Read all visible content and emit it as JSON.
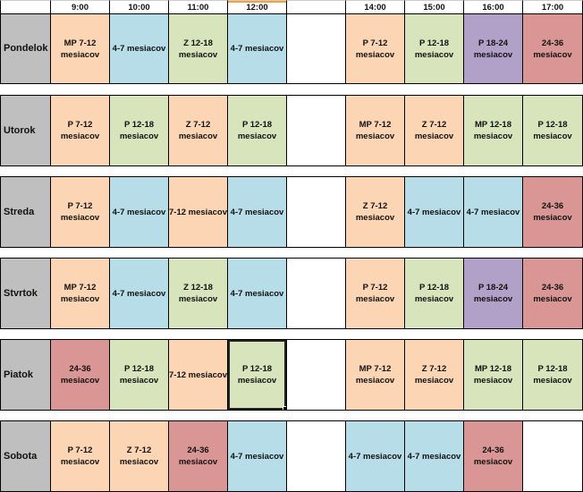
{
  "colors": {
    "peach": "#FCD5B4",
    "blue": "#B7DEE8",
    "green": "#D8E4BC",
    "purple": "#B1A0C7",
    "red": "#DA9694",
    "gray": "#BFBFBF",
    "empty": "#FFFFFF"
  },
  "headers": [
    "",
    "9:00",
    "10:00",
    "11:00",
    "12:00",
    "",
    "14:00",
    "15:00",
    "16:00",
    "17:00"
  ],
  "selected": {
    "day": "Piatok",
    "time": "12:00"
  },
  "rows": [
    {
      "day": "Pondelok",
      "cells": [
        {
          "text": "MP 7-12\nmesiacov",
          "color": "peach"
        },
        {
          "text": "4-7 mesiacov",
          "color": "blue"
        },
        {
          "text": "Z 12-18\nmesiacov",
          "color": "green"
        },
        {
          "text": "4-7 mesiacov",
          "color": "blue"
        },
        {
          "text": "",
          "color": "empty"
        },
        {
          "text": "P 7-12\nmesiacov",
          "color": "peach"
        },
        {
          "text": "P 12-18\nmesiacov",
          "color": "green"
        },
        {
          "text": "P 18-24\nmesiacov",
          "color": "purple"
        },
        {
          "text": "24-36\nmesiacov",
          "color": "red"
        }
      ]
    },
    {
      "day": "Utorok",
      "cells": [
        {
          "text": "P 7-12\nmesiacov",
          "color": "peach"
        },
        {
          "text": "P 12-18\nmesiacov",
          "color": "green"
        },
        {
          "text": "Z 7-12\nmesiacov",
          "color": "peach"
        },
        {
          "text": "P 12-18\nmesiacov",
          "color": "green"
        },
        {
          "text": "",
          "color": "empty"
        },
        {
          "text": "MP 7-12\nmesiacov",
          "color": "peach"
        },
        {
          "text": "Z 7-12\nmesiacov",
          "color": "peach"
        },
        {
          "text": "MP 12-18\nmesiacov",
          "color": "green"
        },
        {
          "text": "P 12-18\nmesiacov",
          "color": "green"
        }
      ]
    },
    {
      "day": "Streda",
      "cells": [
        {
          "text": "P 7-12\nmesiacov",
          "color": "peach"
        },
        {
          "text": "4-7 mesiacov",
          "color": "blue"
        },
        {
          "text": "7-12 mesiacov",
          "color": "peach"
        },
        {
          "text": "4-7 mesiacov",
          "color": "blue"
        },
        {
          "text": "",
          "color": "empty"
        },
        {
          "text": "Z 7-12\nmesiacov",
          "color": "peach"
        },
        {
          "text": "4-7 mesiacov",
          "color": "blue"
        },
        {
          "text": "4-7 mesiacov",
          "color": "blue"
        },
        {
          "text": "24-36\nmesiacov",
          "color": "red"
        }
      ]
    },
    {
      "day": "Stvrtok",
      "cells": [
        {
          "text": "MP 7-12\nmesiacov",
          "color": "peach"
        },
        {
          "text": "4-7 mesiacov",
          "color": "blue"
        },
        {
          "text": "Z 12-18\nmesiacov",
          "color": "green"
        },
        {
          "text": "4-7 mesiacov",
          "color": "blue"
        },
        {
          "text": "",
          "color": "empty"
        },
        {
          "text": "P 7-12\nmesiacov",
          "color": "peach"
        },
        {
          "text": "P 12-18\nmesiacov",
          "color": "green"
        },
        {
          "text": "P 18-24\nmesiacov",
          "color": "purple"
        },
        {
          "text": "24-36\nmesiacov",
          "color": "red"
        }
      ]
    },
    {
      "day": "Piatok",
      "cells": [
        {
          "text": "24-36\nmesiacov",
          "color": "red"
        },
        {
          "text": "P 12-18\nmesiacov",
          "color": "green"
        },
        {
          "text": "7-12 mesiacov",
          "color": "peach"
        },
        {
          "text": "P 12-18\nmesiacov",
          "color": "green"
        },
        {
          "text": "",
          "color": "empty"
        },
        {
          "text": "MP 7-12\nmesiacov",
          "color": "peach"
        },
        {
          "text": "Z 7-12\nmesiacov",
          "color": "peach"
        },
        {
          "text": "MP 12-18\nmesiacov",
          "color": "green"
        },
        {
          "text": "P 12-18\nmesiacov",
          "color": "green"
        }
      ]
    },
    {
      "day": "Sobota",
      "cells": [
        {
          "text": "P 7-12\nmesiacov",
          "color": "peach"
        },
        {
          "text": "Z 7-12\nmesiacov",
          "color": "peach"
        },
        {
          "text": "24-36\nmesiacov",
          "color": "red"
        },
        {
          "text": "4-7 mesiacov",
          "color": "blue"
        },
        {
          "text": "",
          "color": "empty"
        },
        {
          "text": "4-7 mesiacov",
          "color": "blue"
        },
        {
          "text": "4-7 mesiacov",
          "color": "blue"
        },
        {
          "text": "24-36\nmesiacov",
          "color": "red"
        },
        {
          "text": "",
          "color": "empty"
        }
      ]
    }
  ]
}
